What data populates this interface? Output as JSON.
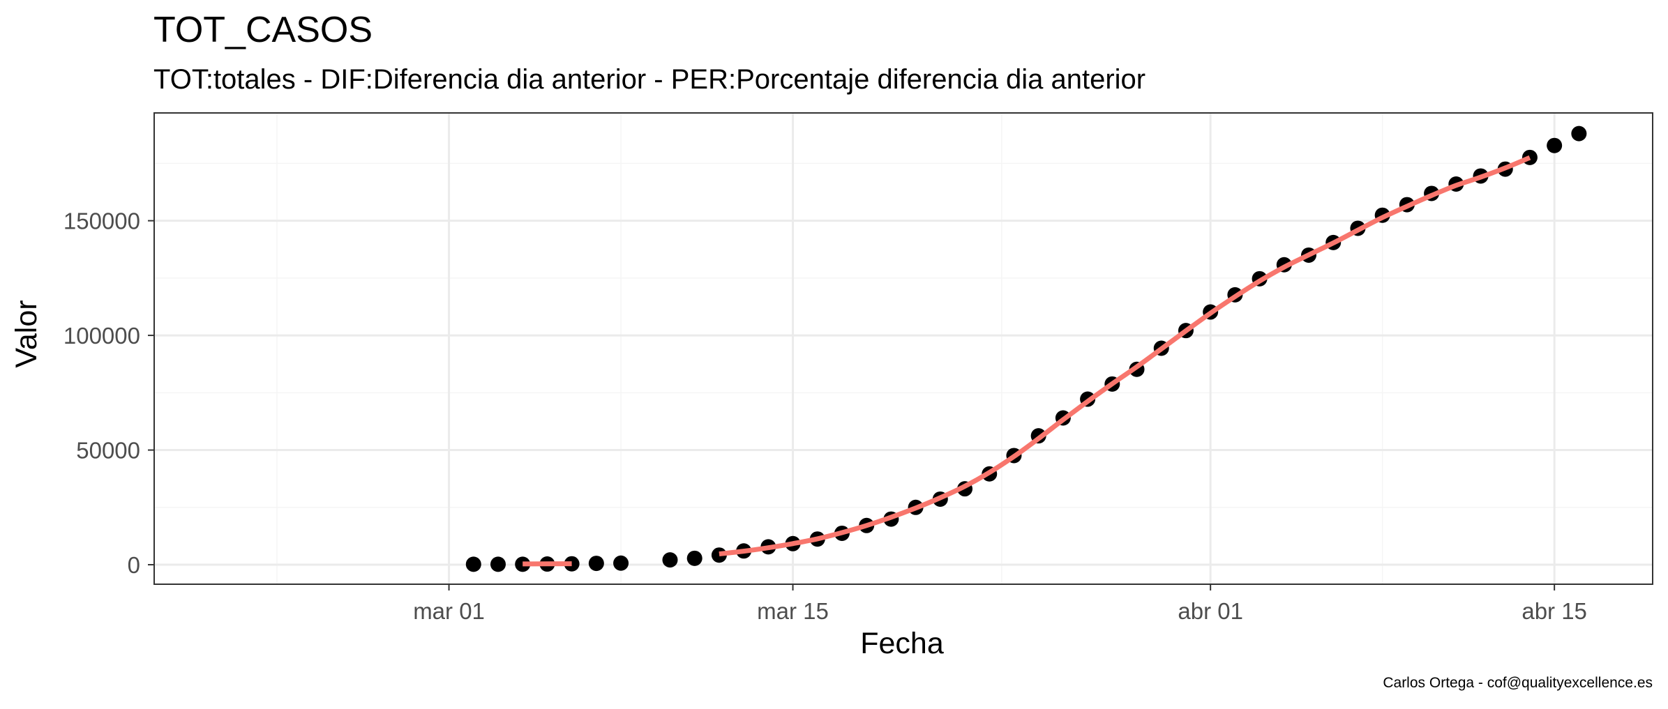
{
  "chart_data": {
    "type": "scatter",
    "title": "TOT_CASOS",
    "subtitle": "TOT:totales - DIF:Diferencia dia anterior - PER:Porcentaje diferencia dia anterior",
    "xlabel": "Fecha",
    "ylabel": "Valor",
    "caption": "Carlos Ortega - cof@qualityexcellence.es",
    "x_ticks": [
      "mar 01",
      "mar 15",
      "abr 01",
      "abr 15"
    ],
    "y_ticks": [
      "0",
      "50000",
      "100000",
      "150000"
    ],
    "xlim": [
      "2020-02-18",
      "2020-04-19"
    ],
    "ylim": [
      -8500,
      197000
    ],
    "grid": true,
    "legend": "none",
    "colors": {
      "points": "#000000",
      "smooth": "#f8766d",
      "panel_border": "#333333",
      "grid_major": "#ebebeb",
      "grid_minor": "#f5f5f5"
    },
    "points": {
      "x": [
        "2020-03-02",
        "2020-03-03",
        "2020-03-04",
        "2020-03-05",
        "2020-03-06",
        "2020-03-07",
        "2020-03-08",
        "2020-03-10",
        "2020-03-11",
        "2020-03-12",
        "2020-03-13",
        "2020-03-14",
        "2020-03-15",
        "2020-03-16",
        "2020-03-17",
        "2020-03-18",
        "2020-03-19",
        "2020-03-20",
        "2020-03-21",
        "2020-03-22",
        "2020-03-23",
        "2020-03-24",
        "2020-03-25",
        "2020-03-26",
        "2020-03-27",
        "2020-03-28",
        "2020-03-29",
        "2020-03-30",
        "2020-03-31",
        "2020-04-01",
        "2020-04-02",
        "2020-04-03",
        "2020-04-04",
        "2020-04-05",
        "2020-04-06",
        "2020-04-07",
        "2020-04-08",
        "2020-04-09",
        "2020-04-10",
        "2020-04-11",
        "2020-04-12",
        "2020-04-13",
        "2020-04-14",
        "2020-04-15",
        "2020-04-16"
      ],
      "y": [
        200,
        200,
        200,
        300,
        400,
        600,
        700,
        2100,
        2800,
        4200,
        6000,
        7800,
        9200,
        11200,
        13700,
        17100,
        19900,
        25000,
        28600,
        33100,
        39600,
        47600,
        56200,
        64000,
        72200,
        78800,
        85200,
        94400,
        102100,
        110200,
        117700,
        124700,
        130800,
        135000,
        140500,
        146700,
        152400,
        157000,
        161900,
        166000,
        169500,
        172500,
        177600,
        182800,
        188000
      ]
    },
    "smooth_segments": [
      {
        "x": [
          "2020-03-04",
          "2020-03-06"
        ],
        "y": [
          350,
          450
        ]
      },
      {
        "x": [
          "2020-03-12",
          "2020-03-13",
          "2020-03-14",
          "2020-03-15",
          "2020-03-16",
          "2020-03-17",
          "2020-03-18",
          "2020-03-19",
          "2020-03-20",
          "2020-03-21",
          "2020-03-22",
          "2020-03-23",
          "2020-03-24",
          "2020-03-25",
          "2020-03-26",
          "2020-03-27",
          "2020-03-28",
          "2020-03-29",
          "2020-03-30",
          "2020-03-31",
          "2020-04-01",
          "2020-04-02",
          "2020-04-03",
          "2020-04-04",
          "2020-04-05",
          "2020-04-06",
          "2020-04-07",
          "2020-04-08",
          "2020-04-09",
          "2020-04-10",
          "2020-04-11",
          "2020-04-12",
          "2020-04-13",
          "2020-04-14"
        ],
        "y": [
          4700,
          5900,
          7400,
          9200,
          11300,
          14000,
          17100,
          20700,
          24700,
          29200,
          34200,
          40200,
          47200,
          55000,
          63200,
          71200,
          78900,
          86300,
          94100,
          102000,
          109700,
          116900,
          123700,
          129800,
          135100,
          140300,
          145900,
          151400,
          156300,
          161000,
          165400,
          169000,
          173000,
          177500
        ]
      }
    ]
  }
}
